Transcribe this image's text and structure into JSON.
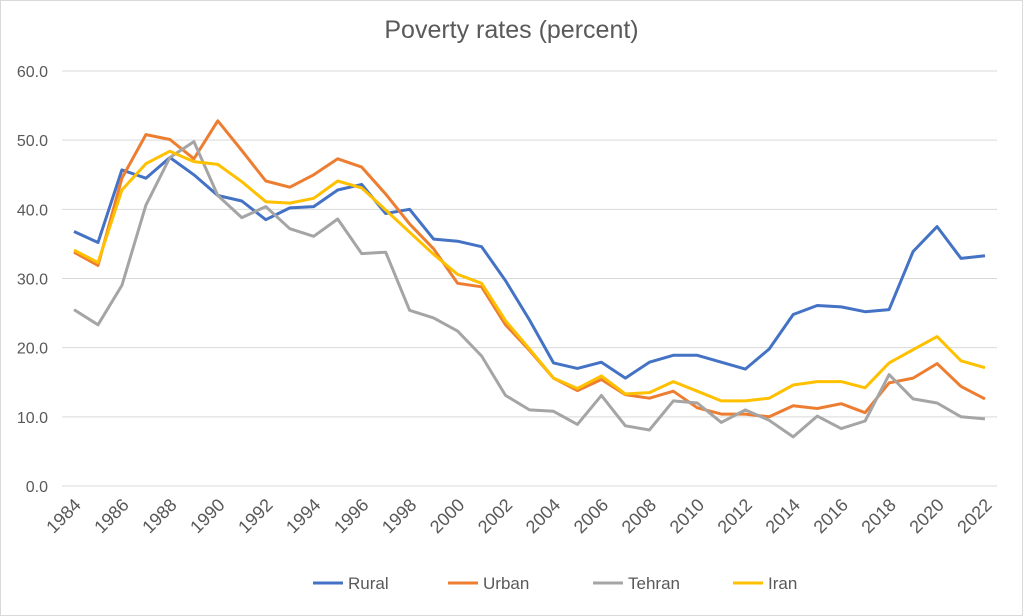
{
  "chart_data": {
    "type": "line",
    "title": "Poverty rates (percent)",
    "xlabel": "",
    "ylabel": "",
    "ylim": [
      0,
      60
    ],
    "yticks": [
      "0.0",
      "10.0",
      "20.0",
      "30.0",
      "40.0",
      "50.0",
      "60.0"
    ],
    "x": [
      1984,
      1985,
      1986,
      1987,
      1988,
      1989,
      1990,
      1991,
      1992,
      1993,
      1994,
      1995,
      1996,
      1997,
      1998,
      1999,
      2000,
      2001,
      2002,
      2003,
      2004,
      2005,
      2006,
      2007,
      2008,
      2009,
      2010,
      2011,
      2012,
      2013,
      2014,
      2015,
      2016,
      2017,
      2018,
      2019,
      2020,
      2021,
      2022
    ],
    "xticks": [
      "1984",
      "1986",
      "1988",
      "1990",
      "1992",
      "1994",
      "1996",
      "1998",
      "2000",
      "2002",
      "2004",
      "2006",
      "2008",
      "2010",
      "2012",
      "2014",
      "2016",
      "2018",
      "2020",
      "2022"
    ],
    "grid": true,
    "legend": "bottom",
    "series": [
      {
        "name": "Rural",
        "color": "#4472c4",
        "values": [
          36.8,
          35.2,
          45.7,
          44.5,
          47.5,
          45.0,
          42.0,
          41.2,
          38.5,
          40.2,
          40.4,
          42.8,
          43.6,
          39.4,
          40.0,
          35.7,
          35.4,
          34.6,
          29.7,
          24.0,
          17.8,
          17.0,
          17.9,
          15.6,
          17.9,
          18.9,
          18.9,
          17.9,
          16.9,
          19.8,
          24.8,
          26.1,
          25.9,
          25.2,
          25.5,
          33.9,
          37.5,
          32.9,
          33.3
        ]
      },
      {
        "name": "Urban",
        "color": "#ed7d31",
        "values": [
          33.8,
          31.9,
          44.5,
          50.8,
          50.1,
          47.3,
          52.8,
          48.5,
          44.1,
          43.2,
          45.0,
          47.3,
          46.1,
          42.2,
          37.9,
          34.3,
          29.3,
          28.8,
          23.3,
          19.6,
          15.6,
          13.8,
          15.4,
          13.2,
          12.7,
          13.7,
          11.3,
          10.4,
          10.4,
          10.0,
          11.6,
          11.2,
          11.9,
          10.6,
          14.9,
          15.6,
          17.7,
          14.4,
          12.6
        ]
      },
      {
        "name": "Tehran",
        "color": "#a5a5a5",
        "values": [
          25.5,
          23.3,
          29.0,
          40.6,
          47.5,
          49.8,
          42.0,
          38.8,
          40.4,
          37.2,
          36.1,
          38.6,
          33.6,
          33.8,
          25.4,
          24.3,
          22.4,
          18.8,
          13.1,
          11.0,
          10.8,
          8.9,
          13.1,
          8.7,
          8.1,
          12.3,
          12.0,
          9.2,
          11.0,
          9.5,
          7.1,
          10.1,
          8.3,
          9.4,
          16.1,
          12.6,
          12.0,
          10.0,
          9.7
        ]
      },
      {
        "name": "Iran",
        "color": "#ffc000",
        "values": [
          34.1,
          32.3,
          42.8,
          46.6,
          48.4,
          46.9,
          46.5,
          44.0,
          41.1,
          40.9,
          41.6,
          44.1,
          43.1,
          39.9,
          36.7,
          33.5,
          30.6,
          29.3,
          23.9,
          19.8,
          15.6,
          14.1,
          15.9,
          13.3,
          13.5,
          15.1,
          13.7,
          12.3,
          12.3,
          12.7,
          14.6,
          15.1,
          15.1,
          14.2,
          17.8,
          19.7,
          21.6,
          18.1,
          17.1
        ]
      }
    ]
  }
}
